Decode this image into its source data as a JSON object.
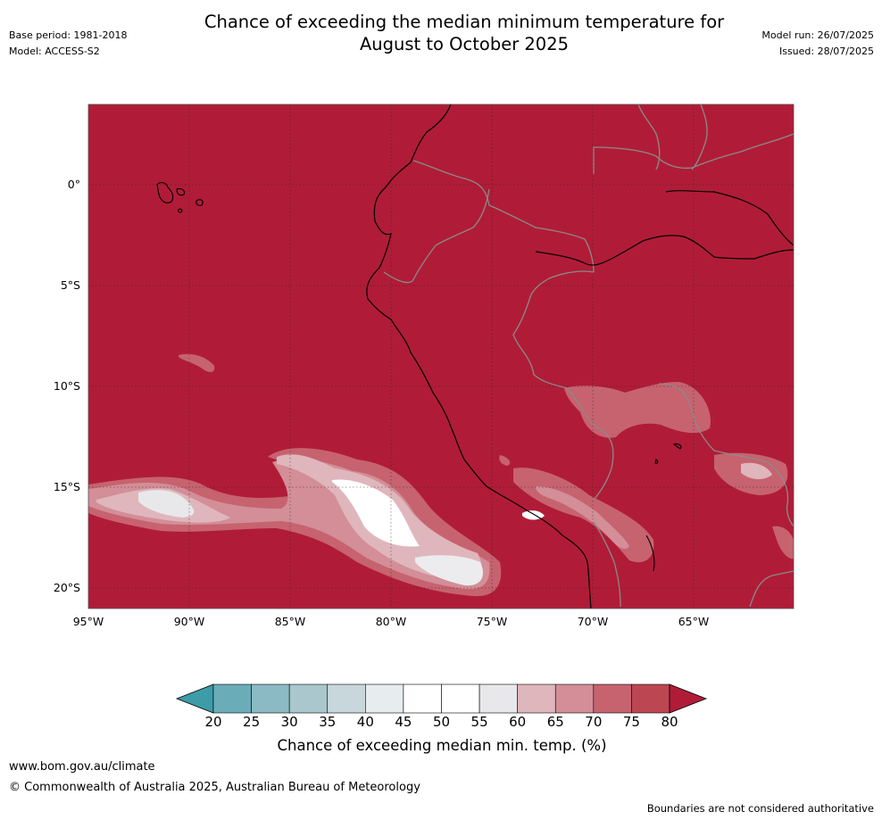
{
  "header": {
    "title_line1": "Chance of exceeding the median minimum temperature for",
    "title_line2": "August to October 2025",
    "base_period": "Base period: 1981-2018",
    "model": "Model: ACCESS-S2",
    "model_run": "Model run: 26/07/2025",
    "issued": "Issued: 28/07/2025"
  },
  "map": {
    "region": "Western South America and eastern Pacific",
    "background_color": "#b01c37",
    "lat_labels": [
      "0°",
      "5°S",
      "10°S",
      "15°S",
      "20°S"
    ],
    "lon_labels": [
      "95°W",
      "90°W",
      "85°W",
      "80°W",
      "75°W",
      "70°W",
      "65°W"
    ]
  },
  "colorbar": {
    "title": "Chance of exceeding median min. temp. (%)",
    "ticks": [
      "20",
      "25",
      "30",
      "35",
      "40",
      "45",
      "50",
      "55",
      "60",
      "65",
      "70",
      "75",
      "80"
    ],
    "colors": [
      "#3d9ca8",
      "#6aadb9",
      "#8cbac4",
      "#a9c7cc",
      "#c8d7db",
      "#e7edef",
      "#ffffff",
      "#ffffff",
      "#e8e8ea",
      "#dfb6bc",
      "#d38e97",
      "#c6636f",
      "#bc4753",
      "#b01c37"
    ]
  },
  "footer": {
    "website": "www.bom.gov.au/climate",
    "copyright": "© Commonwealth of Australia 2025, Australian Bureau of Meteorology",
    "disclaimer": "Boundaries are not considered authoritative"
  }
}
